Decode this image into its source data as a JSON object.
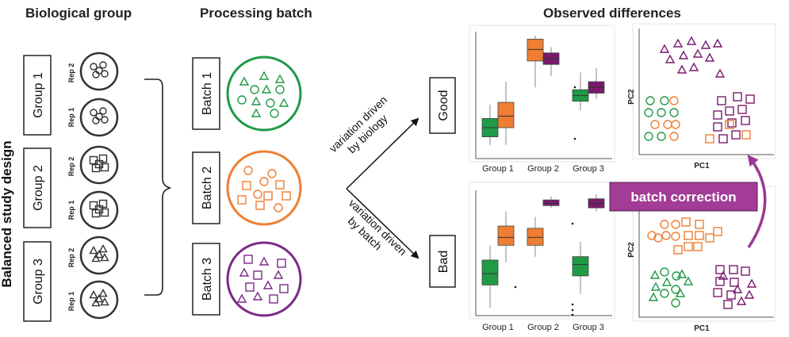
{
  "headers": {
    "biological_group": "Biological group",
    "processing_batch": "Processing batch",
    "observed_differences": "Observed differences"
  },
  "side_label": "Balanced study design",
  "groups": [
    {
      "label": "Group 1",
      "reps": [
        {
          "label": "Rep 2",
          "shape": "circle"
        },
        {
          "label": "Rep 1",
          "shape": "circle"
        }
      ]
    },
    {
      "label": "Group 2",
      "reps": [
        {
          "label": "Rep 2",
          "shape": "square"
        },
        {
          "label": "Rep 1",
          "shape": "square"
        }
      ]
    },
    {
      "label": "Group 3",
      "reps": [
        {
          "label": "Rep 2",
          "shape": "triangle"
        },
        {
          "label": "Rep 1",
          "shape": "triangle"
        }
      ]
    }
  ],
  "batches": [
    {
      "label": "Batch 1",
      "color": "#1f9a46"
    },
    {
      "label": "Batch 2",
      "color": "#ef7d32"
    },
    {
      "label": "Batch 3",
      "color": "#7a2a85"
    }
  ],
  "arrows": {
    "biology_line1": "variation driven",
    "biology_line2": "by biology",
    "batch_line1": "variation driven",
    "batch_line2": "by batch"
  },
  "outcomes": {
    "good": "Good",
    "bad": "Bad"
  },
  "batch_correction": {
    "label": "batch correction",
    "color": "#9b3a93"
  },
  "pca_axes": {
    "x": "PC1",
    "y": "PC2"
  },
  "colors": {
    "green": "#1f9a46",
    "orange": "#ef7d32",
    "purple": "#7a1a6d"
  },
  "chart_data": [
    {
      "type": "box",
      "panel": "good",
      "categories": [
        "Group 1",
        "Group 2",
        "Group 3"
      ],
      "series": [
        {
          "color": "green",
          "values": [
            {
              "cat": "Group 1",
              "min": 0.05,
              "q1": 0.12,
              "median": 0.2,
              "q3": 0.28,
              "max": 0.4
            },
            {
              "cat": "Group 3",
              "min": 0.35,
              "q1": 0.43,
              "median": 0.48,
              "q3": 0.53,
              "max": 0.68
            }
          ]
        },
        {
          "color": "orange",
          "values": [
            {
              "cat": "Group 1",
              "min": 0.05,
              "q1": 0.2,
              "median": 0.3,
              "q3": 0.42,
              "max": 0.6
            },
            {
              "cat": "Group 2",
              "min": 0.55,
              "q1": 0.78,
              "median": 0.88,
              "q3": 0.97,
              "max": 1.0
            }
          ]
        },
        {
          "color": "purple",
          "values": [
            {
              "cat": "Group 2",
              "min": 0.65,
              "q1": 0.75,
              "median": 0.8,
              "q3": 0.85,
              "max": 0.9
            },
            {
              "cat": "Group 3",
              "min": 0.45,
              "q1": 0.5,
              "median": 0.55,
              "q3": 0.6,
              "max": 0.72
            }
          ]
        }
      ]
    },
    {
      "type": "box",
      "panel": "bad",
      "categories": [
        "Group 1",
        "Group 2",
        "Group 3"
      ],
      "series": [
        {
          "color": "green",
          "values": [
            {
              "cat": "Group 1",
              "min": 0.0,
              "q1": 0.2,
              "median": 0.3,
              "q3": 0.42,
              "max": 0.55
            },
            {
              "cat": "Group 3",
              "min": 0.12,
              "q1": 0.28,
              "median": 0.38,
              "q3": 0.45,
              "max": 0.58
            }
          ]
        },
        {
          "color": "orange",
          "values": [
            {
              "cat": "Group 1",
              "min": 0.4,
              "q1": 0.55,
              "median": 0.62,
              "q3": 0.72,
              "max": 0.85
            },
            {
              "cat": "Group 2",
              "min": 0.45,
              "q1": 0.55,
              "median": 0.62,
              "q3": 0.7,
              "max": 0.8
            }
          ]
        },
        {
          "color": "purple",
          "values": [
            {
              "cat": "Group 2",
              "min": 0.88,
              "q1": 0.9,
              "median": 0.92,
              "q3": 0.95,
              "max": 0.98
            },
            {
              "cat": "Group 3",
              "min": 0.85,
              "q1": 0.88,
              "median": 0.92,
              "q3": 0.96,
              "max": 1.0
            }
          ]
        }
      ]
    },
    {
      "type": "scatter",
      "panel": "good-pca",
      "clusters": [
        {
          "color": "purple",
          "shape": "triangle",
          "count": 11
        },
        {
          "color": "green",
          "shape": "circle",
          "count": 4
        },
        {
          "color": "orange",
          "shape": "circle",
          "count": 6
        },
        {
          "color": "purple",
          "shape": "square",
          "count": 11
        },
        {
          "color": "orange",
          "shape": "square",
          "count": 5
        }
      ]
    },
    {
      "type": "scatter",
      "panel": "bad-pca",
      "clusters": [
        {
          "color": "orange",
          "shape": "circle",
          "count": 6
        },
        {
          "color": "orange",
          "shape": "square",
          "count": 9
        },
        {
          "color": "green",
          "shape": "circle",
          "count": 6
        },
        {
          "color": "green",
          "shape": "triangle",
          "count": 7
        },
        {
          "color": "purple",
          "shape": "square",
          "count": 6
        },
        {
          "color": "purple",
          "shape": "triangle",
          "count": 6
        }
      ]
    }
  ]
}
